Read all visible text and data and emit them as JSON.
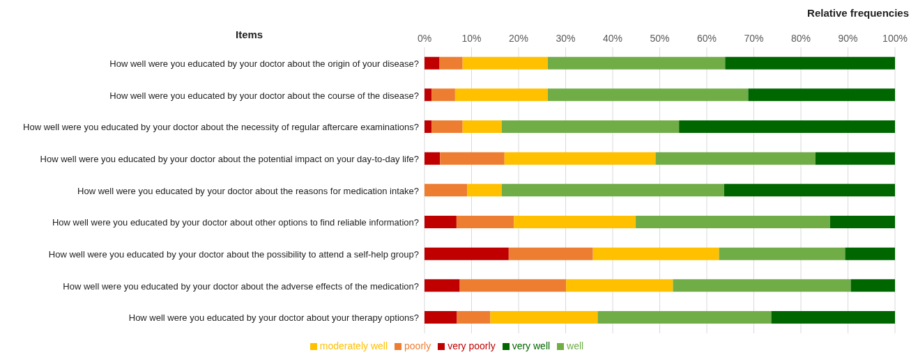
{
  "chart_data": {
    "type": "bar",
    "orientation": "horizontal",
    "stacked": true,
    "xlabel": "Relative frequencies",
    "ylabel": "Items",
    "categories": [
      "How well were you educated by your doctor about the origin of your disease?",
      "How well were you educated by your doctor about the course of the disease?",
      "How well were you educated by your doctor about the necessity of regular aftercare examinations?",
      "How well were you educated by your doctor about the potential impact on your day-to-day life?",
      "How well were you educated by your doctor about the reasons for medication intake?",
      "How well were you educated by your doctor about other options to find reliable information?",
      "How well were you educated by your doctor about the possibility to attend a self-help group?",
      "How well were you educated by your doctor about the adverse effects of the medication?",
      "How well were you educated by your doctor about your therapy options?"
    ],
    "series": [
      {
        "name": "very poorly",
        "color": "#c00000",
        "values": [
          3.2,
          1.5,
          1.5,
          3.3,
          0,
          6.8,
          17.9,
          7.5,
          6.9
        ]
      },
      {
        "name": "poorly",
        "color": "#ed7d31",
        "values": [
          4.9,
          5.0,
          6.6,
          13.7,
          9.1,
          12.2,
          17.9,
          22.6,
          7.1
        ]
      },
      {
        "name": "moderately well",
        "color": "#ffc000",
        "values": [
          18.1,
          19.7,
          8.3,
          32.1,
          7.3,
          25.9,
          26.8,
          22.7,
          22.8
        ]
      },
      {
        "name": "well",
        "color": "#70ad47",
        "values": [
          37.7,
          42.6,
          37.7,
          34.0,
          47.3,
          41.3,
          26.8,
          37.8,
          36.9
        ]
      },
      {
        "name": "very well",
        "color": "#006600",
        "values": [
          36.1,
          31.2,
          45.9,
          16.9,
          36.3,
          13.8,
          10.6,
          9.4,
          26.3
        ]
      }
    ],
    "xlim": [
      0,
      100
    ],
    "xticks": [
      {
        "value": 0,
        "label": "0%"
      },
      {
        "value": 10,
        "label": "10%"
      },
      {
        "value": 20,
        "label": "20%"
      },
      {
        "value": 30,
        "label": "30%"
      },
      {
        "value": 40,
        "label": "40%"
      },
      {
        "value": 50,
        "label": "50%"
      },
      {
        "value": 60,
        "label": "60%"
      },
      {
        "value": 70,
        "label": "70%"
      },
      {
        "value": 80,
        "label": "80%"
      },
      {
        "value": 90,
        "label": "90%"
      },
      {
        "value": 100,
        "label": "100%"
      }
    ],
    "grid": "x",
    "legend": "bottom"
  }
}
